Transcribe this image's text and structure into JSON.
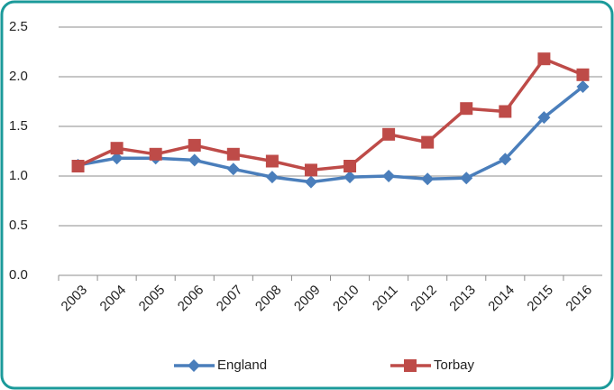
{
  "chart_data": {
    "type": "line",
    "categories": [
      "2003",
      "2004",
      "2005",
      "2006",
      "2007",
      "2008",
      "2009",
      "2010",
      "2011",
      "2012",
      "2013",
      "2014",
      "2015",
      "2016"
    ],
    "series": [
      {
        "name": "England",
        "color": "#4a7ebb",
        "marker": "diamond",
        "values": [
          1.11,
          1.18,
          1.18,
          1.16,
          1.07,
          0.99,
          0.94,
          0.99,
          1.0,
          0.97,
          0.98,
          1.17,
          1.59,
          1.9
        ]
      },
      {
        "name": "Torbay",
        "color": "#be4b48",
        "marker": "square",
        "values": [
          1.1,
          1.28,
          1.22,
          1.31,
          1.22,
          1.15,
          1.06,
          1.1,
          1.42,
          1.34,
          1.68,
          1.65,
          2.18,
          2.02
        ]
      }
    ],
    "ylim": [
      0,
      2.5
    ],
    "yticks": [
      {
        "value": 0,
        "label": "0.0"
      },
      0.5,
      {
        "value": 1,
        "label": "1.0"
      },
      1.5,
      {
        "value": 2,
        "label": "2.0"
      },
      2.5
    ],
    "grid": true,
    "legend": "bottom"
  }
}
